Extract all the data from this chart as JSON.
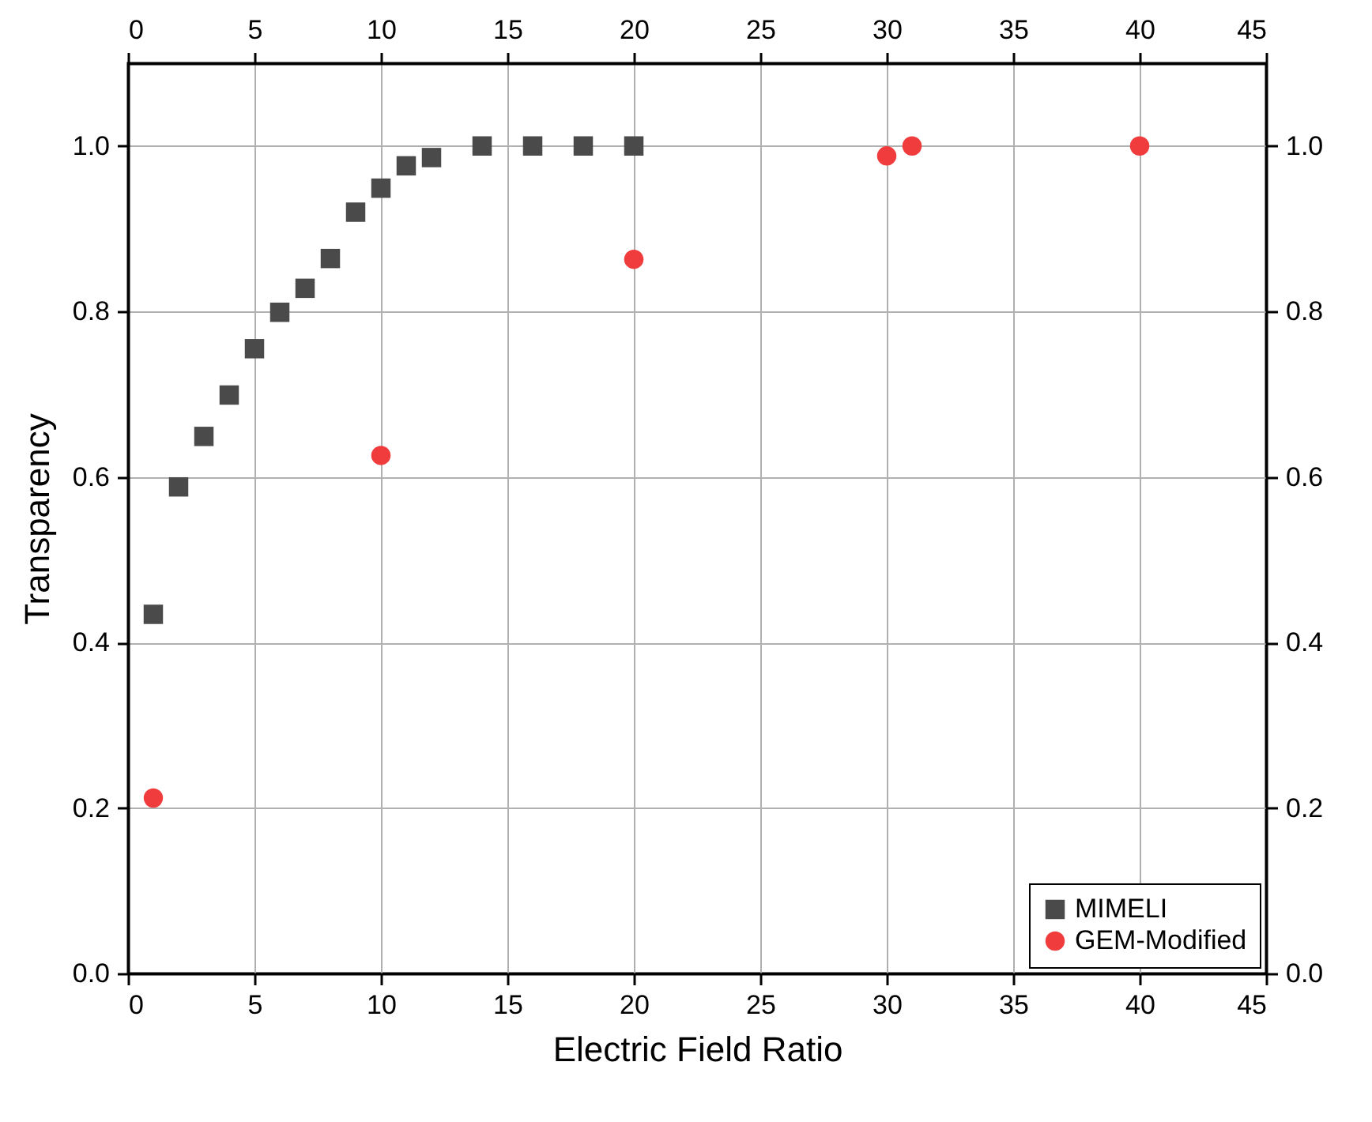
{
  "chart_data": {
    "type": "scatter",
    "xlabel": "Electric Field Ratio",
    "ylabel": "Transparency",
    "xlim": [
      0,
      45
    ],
    "xticks": [
      0,
      5,
      10,
      15,
      20,
      25,
      30,
      35,
      40,
      45
    ],
    "x2lim": [
      0,
      45
    ],
    "x2ticks": [
      0,
      5,
      10,
      15,
      20,
      25,
      30,
      35,
      40,
      45
    ],
    "ylim": [
      0,
      1.1
    ],
    "yticks": [
      {
        "value": 0,
        "label": "0.0"
      },
      0.2,
      0.4,
      0.6,
      0.8,
      {
        "value": 1,
        "label": "1.0"
      }
    ],
    "y2lim": [
      0,
      1.1
    ],
    "y2ticks": [
      {
        "value": 0,
        "label": "0.0"
      },
      0.2,
      0.4,
      0.6,
      0.8,
      {
        "value": 1,
        "label": "1.0"
      }
    ],
    "grid": true,
    "legend": "bottom right",
    "series": [
      {
        "name": "MIMELI",
        "color": "#4a4a4a",
        "marker": "square",
        "x": [
          1,
          2,
          3,
          4,
          5,
          6,
          7,
          8,
          9,
          10,
          11,
          12,
          14,
          16,
          18,
          20
        ],
        "values": [
          0.434,
          0.588,
          0.649,
          0.699,
          0.755,
          0.799,
          0.828,
          0.864,
          0.92,
          0.949,
          0.976,
          0.986,
          1.0,
          1.0,
          1.0,
          1.0
        ]
      },
      {
        "name": "GEM-Modified",
        "color": "#f03c3c",
        "marker": "circle",
        "x": [
          1,
          10,
          20,
          30,
          31,
          40
        ],
        "values": [
          0.212,
          0.626,
          0.863,
          0.988,
          1.0,
          1.0
        ]
      }
    ]
  }
}
